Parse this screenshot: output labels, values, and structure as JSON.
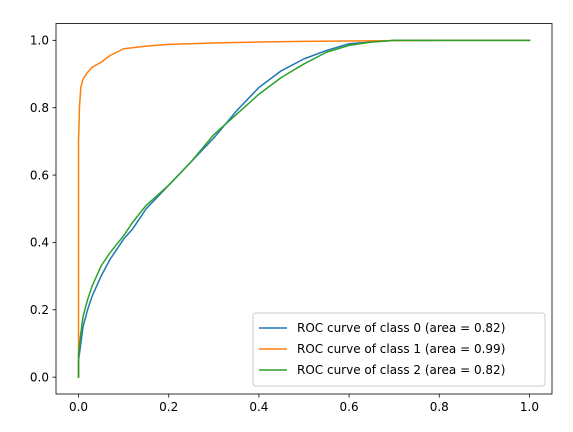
{
  "chart_data": {
    "type": "line",
    "title": "",
    "xlabel": "",
    "ylabel": "",
    "xlim": [
      -0.05,
      1.05
    ],
    "ylim": [
      -0.05,
      1.05
    ],
    "xticks": [
      0.0,
      0.2,
      0.4,
      0.6,
      0.8,
      1.0
    ],
    "yticks": [
      0.0,
      0.2,
      0.4,
      0.6,
      0.8,
      1.0
    ],
    "xtick_labels": [
      "0.0",
      "0.2",
      "0.4",
      "0.6",
      "0.8",
      "1.0"
    ],
    "ytick_labels": [
      "0.0",
      "0.2",
      "0.4",
      "0.6",
      "0.8",
      "1.0"
    ],
    "grid": false,
    "legend_position": "lower-right",
    "series": [
      {
        "name": "ROC curve of class 0 (area = 0.82)",
        "color": "#1f77b4",
        "x": [
          0,
          0,
          0.005,
          0.01,
          0.02,
          0.03,
          0.05,
          0.07,
          0.1,
          0.12,
          0.15,
          0.2,
          0.25,
          0.3,
          0.35,
          0.4,
          0.45,
          0.5,
          0.55,
          0.6,
          0.65,
          0.7,
          0.8,
          0.9,
          1.0
        ],
        "y": [
          0,
          0.05,
          0.1,
          0.15,
          0.2,
          0.24,
          0.3,
          0.35,
          0.41,
          0.44,
          0.5,
          0.57,
          0.64,
          0.71,
          0.79,
          0.86,
          0.91,
          0.945,
          0.97,
          0.99,
          0.995,
          1.0,
          1.0,
          1.0,
          1.0
        ]
      },
      {
        "name": "ROC curve of class 1 (area = 0.99)",
        "color": "#ff7f0e",
        "x": [
          0,
          0,
          0.002,
          0.005,
          0.01,
          0.02,
          0.03,
          0.05,
          0.07,
          0.1,
          0.15,
          0.2,
          0.3,
          0.4,
          0.5,
          0.6,
          0.7,
          0.8,
          1.0
        ],
        "y": [
          0,
          0.7,
          0.8,
          0.86,
          0.885,
          0.905,
          0.92,
          0.935,
          0.955,
          0.975,
          0.983,
          0.988,
          0.992,
          0.995,
          0.997,
          0.998,
          0.999,
          1.0,
          1.0
        ]
      },
      {
        "name": "ROC curve of class 2 (area = 0.82)",
        "color": "#2ca02c",
        "x": [
          0,
          0,
          0.005,
          0.01,
          0.02,
          0.03,
          0.05,
          0.07,
          0.1,
          0.12,
          0.15,
          0.2,
          0.25,
          0.3,
          0.35,
          0.4,
          0.45,
          0.5,
          0.55,
          0.6,
          0.65,
          0.7,
          0.8,
          0.9,
          1.0
        ],
        "y": [
          0,
          0.07,
          0.13,
          0.18,
          0.23,
          0.27,
          0.33,
          0.37,
          0.42,
          0.46,
          0.51,
          0.57,
          0.64,
          0.72,
          0.78,
          0.84,
          0.89,
          0.93,
          0.965,
          0.985,
          0.995,
          1.0,
          1.0,
          1.0,
          1.0
        ]
      }
    ]
  }
}
